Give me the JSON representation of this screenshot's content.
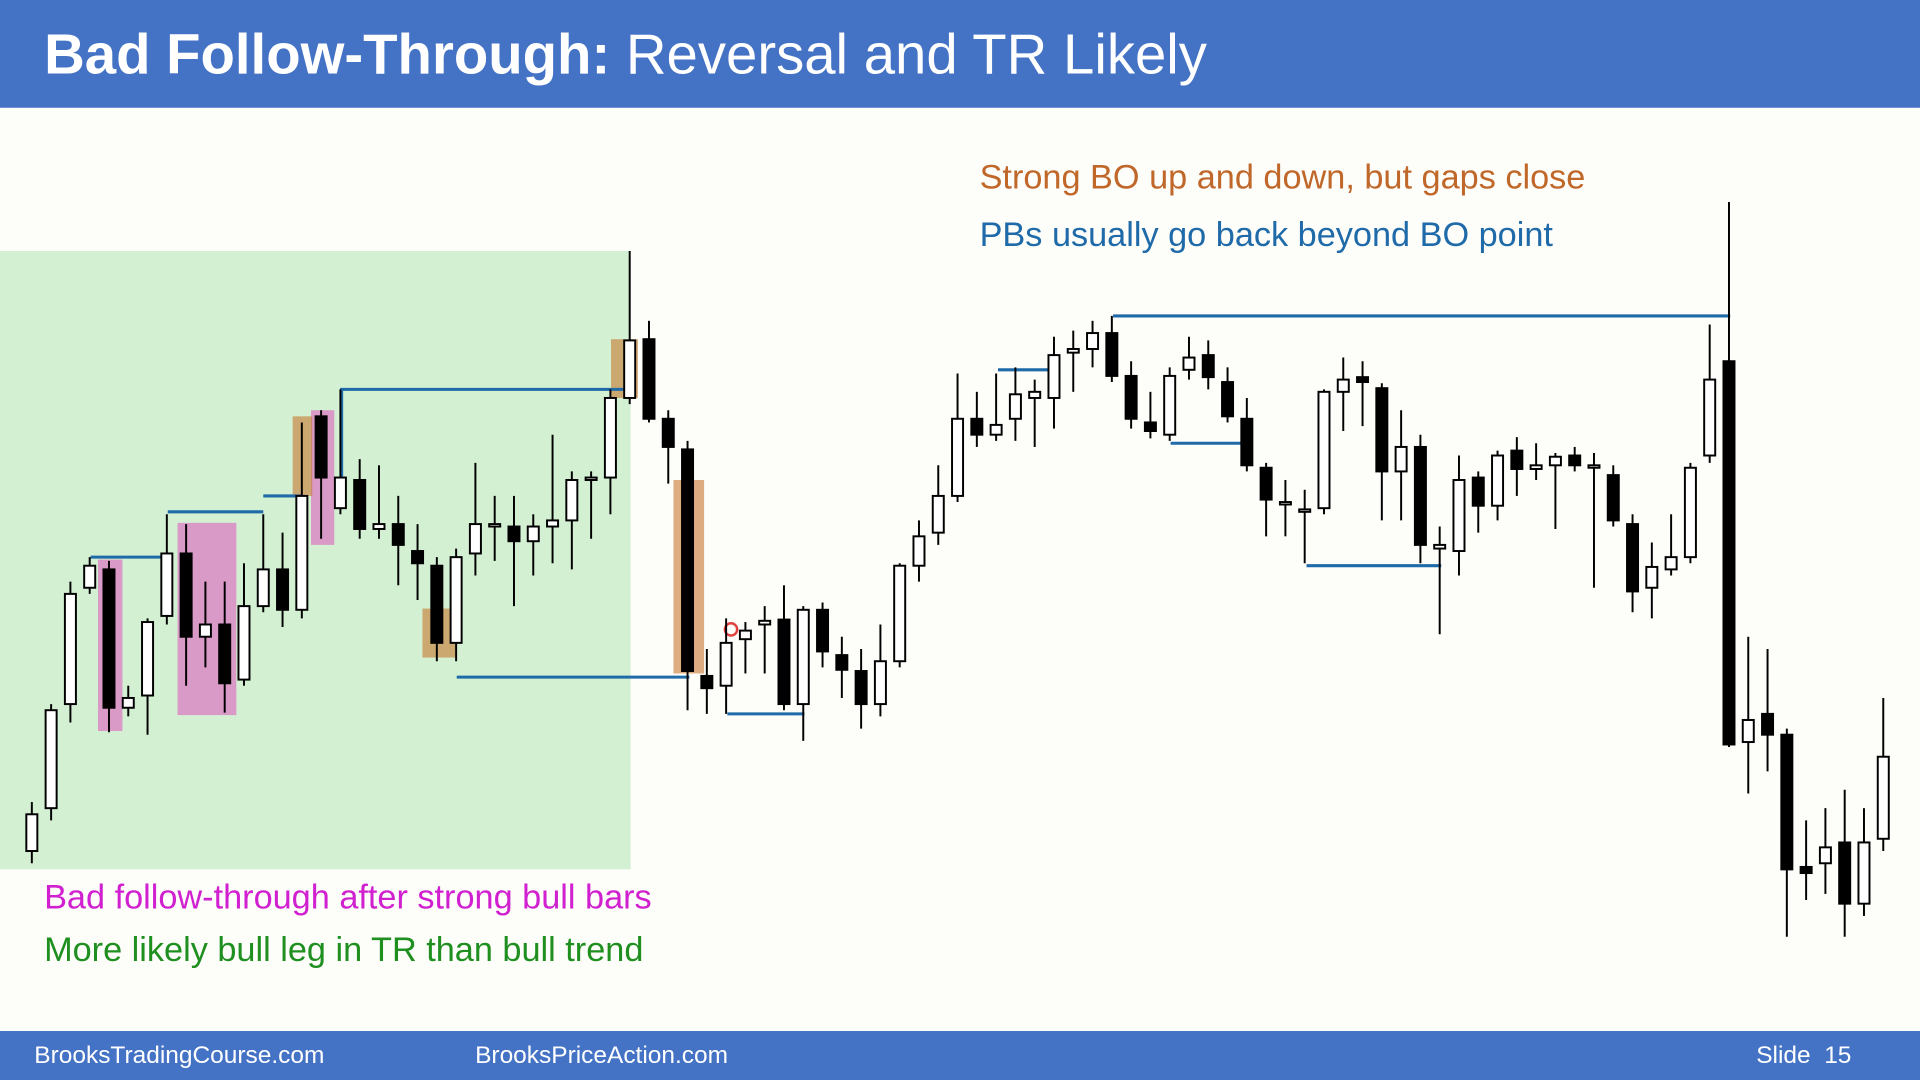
{
  "header": {
    "title_bold": "Bad Follow-Through:",
    "title_rest": "Reversal and TR Likely"
  },
  "chart_data": {
    "type": "candlestick",
    "annotations": [
      "Strong BO up and down, but gaps close",
      "PBs usually go back beyond BO point",
      "Bad follow-through after strong bull bars",
      "More likely bull leg in TR than bull trend"
    ],
    "ylim": [
      158,
      912
    ],
    "ohlc": [
      [
        305,
        345,
        295,
        335
      ],
      [
        340,
        425,
        330,
        420
      ],
      [
        425,
        525,
        410,
        515
      ],
      [
        520,
        545,
        515,
        538
      ],
      [
        535,
        542,
        402,
        422
      ],
      [
        422,
        440,
        415,
        430
      ],
      [
        432,
        495,
        400,
        492
      ],
      [
        497,
        580,
        490,
        548
      ],
      [
        548,
        572,
        440,
        480
      ],
      [
        480,
        525,
        455,
        490
      ],
      [
        490,
        525,
        418,
        442
      ],
      [
        445,
        540,
        440,
        505
      ],
      [
        505,
        580,
        500,
        535
      ],
      [
        535,
        565,
        488,
        502
      ],
      [
        502,
        655,
        495,
        595
      ],
      [
        660,
        665,
        560,
        610
      ],
      [
        585,
        682,
        580,
        610
      ],
      [
        608,
        625,
        560,
        568
      ],
      [
        568,
        620,
        560,
        572
      ],
      [
        572,
        595,
        522,
        555
      ],
      [
        550,
        572,
        510,
        540
      ],
      [
        538,
        545,
        460,
        475
      ],
      [
        475,
        552,
        460,
        545
      ],
      [
        548,
        622,
        530,
        572
      ],
      [
        570,
        595,
        542,
        572
      ],
      [
        570,
        595,
        505,
        558
      ],
      [
        558,
        580,
        530,
        570
      ],
      [
        570,
        645,
        540,
        575
      ],
      [
        575,
        615,
        535,
        608
      ],
      [
        608,
        615,
        560,
        610
      ],
      [
        610,
        682,
        580,
        675
      ],
      [
        675,
        795,
        670,
        722
      ],
      [
        723,
        738,
        655,
        658
      ],
      [
        658,
        665,
        605,
        635
      ],
      [
        633,
        640,
        420,
        452
      ],
      [
        448,
        470,
        417,
        438
      ],
      [
        440,
        495,
        417,
        475
      ],
      [
        478,
        492,
        450,
        485
      ],
      [
        490,
        505,
        450,
        493
      ],
      [
        494,
        522,
        420,
        425
      ],
      [
        425,
        505,
        395,
        502
      ],
      [
        502,
        508,
        455,
        468
      ],
      [
        465,
        480,
        430,
        453
      ],
      [
        452,
        470,
        405,
        425
      ],
      [
        425,
        490,
        415,
        460
      ],
      [
        460,
        540,
        455,
        538
      ],
      [
        538,
        575,
        525,
        562
      ],
      [
        565,
        620,
        555,
        595
      ],
      [
        595,
        695,
        590,
        658
      ],
      [
        658,
        680,
        635,
        645
      ],
      [
        645,
        695,
        640,
        653
      ],
      [
        658,
        700,
        640,
        678
      ],
      [
        675,
        690,
        635,
        680
      ],
      [
        675,
        725,
        650,
        710
      ],
      [
        712,
        730,
        680,
        715
      ],
      [
        715,
        738,
        700,
        728
      ],
      [
        728,
        742,
        688,
        693
      ],
      [
        693,
        705,
        650,
        658
      ],
      [
        655,
        680,
        642,
        648
      ],
      [
        645,
        700,
        640,
        693
      ],
      [
        698,
        725,
        690,
        708
      ],
      [
        710,
        722,
        682,
        692
      ],
      [
        688,
        700,
        655,
        660
      ],
      [
        658,
        675,
        615,
        620
      ],
      [
        618,
        622,
        562,
        592
      ],
      [
        588,
        608,
        562,
        590
      ],
      [
        582,
        600,
        540,
        584
      ],
      [
        585,
        682,
        580,
        680
      ],
      [
        680,
        708,
        648,
        690
      ],
      [
        692,
        705,
        652,
        688
      ],
      [
        683,
        687,
        575,
        615
      ],
      [
        615,
        665,
        575,
        635
      ],
      [
        635,
        645,
        540,
        555
      ],
      [
        552,
        570,
        482,
        555
      ],
      [
        550,
        628,
        530,
        608
      ],
      [
        610,
        615,
        565,
        587
      ],
      [
        587,
        632,
        575,
        628
      ],
      [
        632,
        643,
        595,
        617
      ],
      [
        617,
        638,
        608,
        620
      ],
      [
        620,
        630,
        568,
        627
      ],
      [
        628,
        635,
        615,
        620
      ],
      [
        618,
        630,
        520,
        620
      ],
      [
        612,
        620,
        570,
        575
      ],
      [
        572,
        580,
        500,
        517
      ],
      [
        520,
        557,
        495,
        537
      ],
      [
        535,
        580,
        530,
        545
      ],
      [
        545,
        622,
        540,
        618
      ],
      [
        628,
        735,
        622,
        690
      ],
      [
        705,
        835,
        390,
        392
      ],
      [
        394,
        480,
        352,
        412
      ],
      [
        417,
        470,
        370,
        400
      ],
      [
        400,
        405,
        235,
        290
      ],
      [
        292,
        330,
        265,
        287
      ],
      [
        295,
        340,
        270,
        308
      ],
      [
        312,
        355,
        235,
        262
      ],
      [
        262,
        340,
        252,
        312
      ],
      [
        315,
        430,
        305,
        382
      ]
    ]
  },
  "footer": {
    "left": "BrooksTradingCourse.com",
    "middle": "BrooksPriceAction.com",
    "slide": "Slide  15"
  }
}
